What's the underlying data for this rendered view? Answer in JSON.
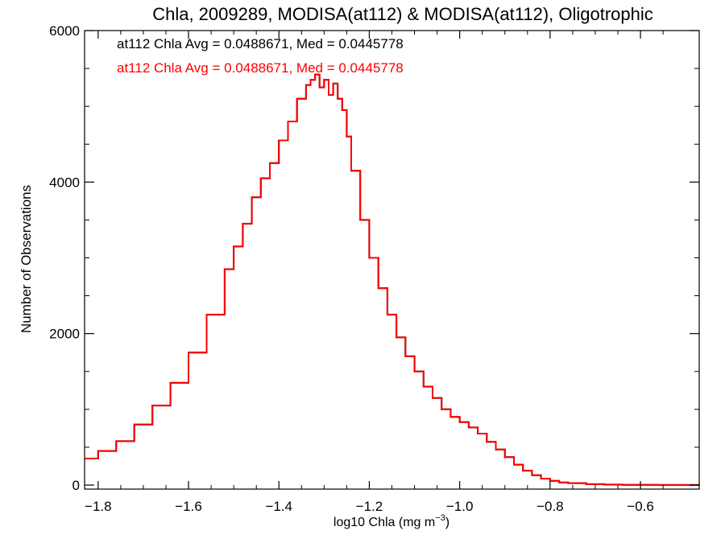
{
  "chart_data": {
    "type": "histogram-step",
    "title": "Chla, 2009289, MODISA(at112) & MODISA(at112), Oligotrophic",
    "xlabel_main": "log10 Chla (mg m",
    "xlabel_exp": "−3",
    "xlabel_close": ")",
    "ylabel": "Number of Observations",
    "xlim": [
      -1.83,
      -0.47
    ],
    "ylim": [
      0,
      6000
    ],
    "x_ticks": [
      -1.8,
      -1.6,
      -1.4,
      -1.2,
      -1.0,
      -0.8,
      -0.6
    ],
    "x_tick_labels": [
      "−1.8",
      "−1.6",
      "−1.4",
      "−1.2",
      "−1.0",
      "−0.8",
      "−0.6"
    ],
    "y_ticks": [
      0,
      2000,
      4000,
      6000
    ],
    "y_tick_labels": [
      "0",
      "2000",
      "4000",
      "6000"
    ],
    "annotations": [
      {
        "text": "at112 Chla Avg = 0.0488671, Med = 0.0445778",
        "color": "#000000"
      },
      {
        "text": "at112 Chla Avg = 0.0488671, Med = 0.0445778",
        "color": "#ff0000"
      }
    ],
    "series": [
      {
        "color": "#000000",
        "x": [
          -1.83,
          -1.8,
          -1.76,
          -1.72,
          -1.68,
          -1.64,
          -1.6,
          -1.56,
          -1.52,
          -1.5,
          -1.48,
          -1.46,
          -1.44,
          -1.42,
          -1.4,
          -1.38,
          -1.36,
          -1.34,
          -1.33,
          -1.32,
          -1.31,
          -1.3,
          -1.29,
          -1.28,
          -1.27,
          -1.26,
          -1.25,
          -1.24,
          -1.22,
          -1.2,
          -1.18,
          -1.16,
          -1.14,
          -1.12,
          -1.1,
          -1.08,
          -1.06,
          -1.04,
          -1.02,
          -1.0,
          -0.98,
          -0.96,
          -0.94,
          -0.92,
          -0.9,
          -0.88,
          -0.86,
          -0.84,
          -0.82,
          -0.8,
          -0.78,
          -0.76,
          -0.72,
          -0.68,
          -0.64,
          -0.6,
          -0.56,
          -0.52,
          -0.47
        ],
        "y": [
          350,
          450,
          580,
          800,
          1050,
          1350,
          1750,
          2250,
          2850,
          3150,
          3450,
          3800,
          4050,
          4250,
          4550,
          4800,
          5100,
          5280,
          5350,
          5420,
          5250,
          5350,
          5150,
          5300,
          5100,
          4950,
          4600,
          4150,
          3500,
          3000,
          2600,
          2250,
          1950,
          1700,
          1500,
          1300,
          1150,
          1000,
          900,
          830,
          760,
          680,
          570,
          470,
          370,
          270,
          190,
          130,
          85,
          55,
          35,
          25,
          12,
          6,
          3,
          2,
          1,
          1,
          0
        ]
      },
      {
        "color": "#ff0000",
        "x": [
          -1.83,
          -1.8,
          -1.76,
          -1.72,
          -1.68,
          -1.64,
          -1.6,
          -1.56,
          -1.52,
          -1.5,
          -1.48,
          -1.46,
          -1.44,
          -1.42,
          -1.4,
          -1.38,
          -1.36,
          -1.34,
          -1.33,
          -1.32,
          -1.31,
          -1.3,
          -1.29,
          -1.28,
          -1.27,
          -1.26,
          -1.25,
          -1.24,
          -1.22,
          -1.2,
          -1.18,
          -1.16,
          -1.14,
          -1.12,
          -1.1,
          -1.08,
          -1.06,
          -1.04,
          -1.02,
          -1.0,
          -0.98,
          -0.96,
          -0.94,
          -0.92,
          -0.9,
          -0.88,
          -0.86,
          -0.84,
          -0.82,
          -0.8,
          -0.78,
          -0.76,
          -0.72,
          -0.68,
          -0.64,
          -0.6,
          -0.56,
          -0.52,
          -0.47
        ],
        "y": [
          350,
          450,
          580,
          800,
          1050,
          1350,
          1750,
          2250,
          2850,
          3150,
          3450,
          3800,
          4050,
          4250,
          4550,
          4800,
          5100,
          5280,
          5350,
          5420,
          5250,
          5350,
          5150,
          5300,
          5100,
          4950,
          4600,
          4150,
          3500,
          3000,
          2600,
          2250,
          1950,
          1700,
          1500,
          1300,
          1150,
          1000,
          900,
          830,
          760,
          680,
          570,
          470,
          370,
          270,
          190,
          130,
          85,
          55,
          35,
          25,
          12,
          6,
          3,
          2,
          1,
          1,
          0
        ]
      }
    ]
  }
}
